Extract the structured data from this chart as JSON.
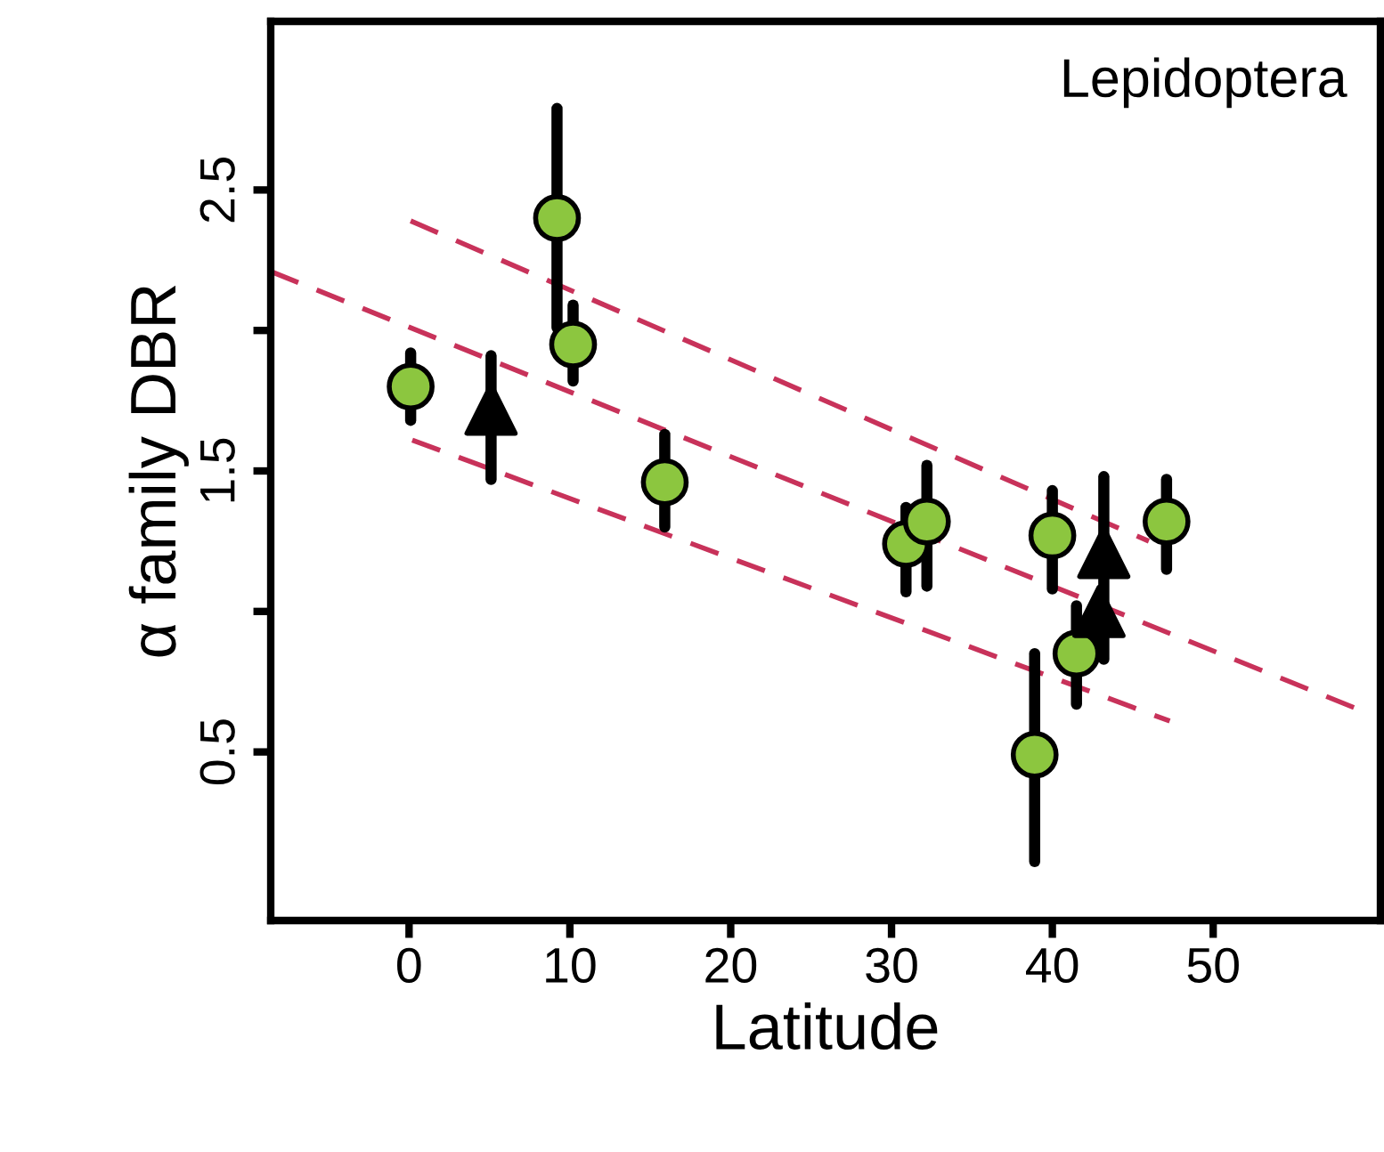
{
  "chart_data": {
    "type": "scatter",
    "xlabel": "Latitude",
    "ylabel": "α family DBR",
    "annotations": [
      "Lepidoptera"
    ],
    "xlim": [
      -8.6,
      60.4
    ],
    "ylim": [
      -0.1,
      3.1
    ],
    "xticks": [
      0,
      10,
      20,
      30,
      40,
      50
    ],
    "yticks": [
      {
        "value": 0.5,
        "label": "0.5"
      },
      {
        "value": 1.0,
        "label": null
      },
      {
        "value": 1.5,
        "label": "1.5"
      },
      {
        "value": 2.0,
        "label": null
      },
      {
        "value": 2.5,
        "label": "2.5"
      }
    ],
    "grid": false,
    "legend": false,
    "series": [
      {
        "marker": "circle",
        "color": "#8cc63f",
        "x": [
          0.1,
          9.2,
          10.2,
          15.9,
          30.9,
          32.2,
          38.9,
          40.0,
          41.5,
          47.1
        ],
        "values": [
          1.8,
          2.4,
          1.95,
          1.46,
          1.24,
          1.32,
          0.49,
          1.27,
          0.85,
          1.32
        ],
        "errors": [
          [
            1.68,
            1.92
          ],
          [
            2.01,
            2.79
          ],
          [
            1.82,
            2.09
          ],
          [
            1.3,
            1.63
          ],
          [
            1.07,
            1.37
          ],
          [
            1.09,
            1.52
          ],
          [
            0.11,
            0.85
          ],
          [
            1.08,
            1.43
          ],
          [
            0.67,
            1.02
          ],
          [
            1.15,
            1.47
          ]
        ]
      },
      {
        "marker": "triangle",
        "color": "#000000",
        "x": [
          5.1,
          42.9,
          43.2
        ],
        "values": [
          1.72,
          1.0,
          1.21
        ],
        "errors": [
          [
            1.47,
            1.91
          ],
          [
            0.86,
            1.0
          ],
          [
            0.83,
            1.48
          ]
        ]
      },
      {
        "type": "line",
        "line_style": "dashed",
        "color": "#c8325a",
        "x": [
          -8.6,
          59.1
        ],
        "values": [
          2.21,
          0.65
        ]
      },
      {
        "type": "line",
        "line_style": "dashed",
        "color": "#c8325a",
        "x": [
          0.1,
          46.0
        ],
        "values": [
          2.39,
          1.25
        ]
      },
      {
        "type": "line",
        "line_style": "dashed",
        "color": "#c8325a",
        "x": [
          0.2,
          47.3
        ],
        "values": [
          1.61,
          0.61
        ]
      }
    ]
  }
}
